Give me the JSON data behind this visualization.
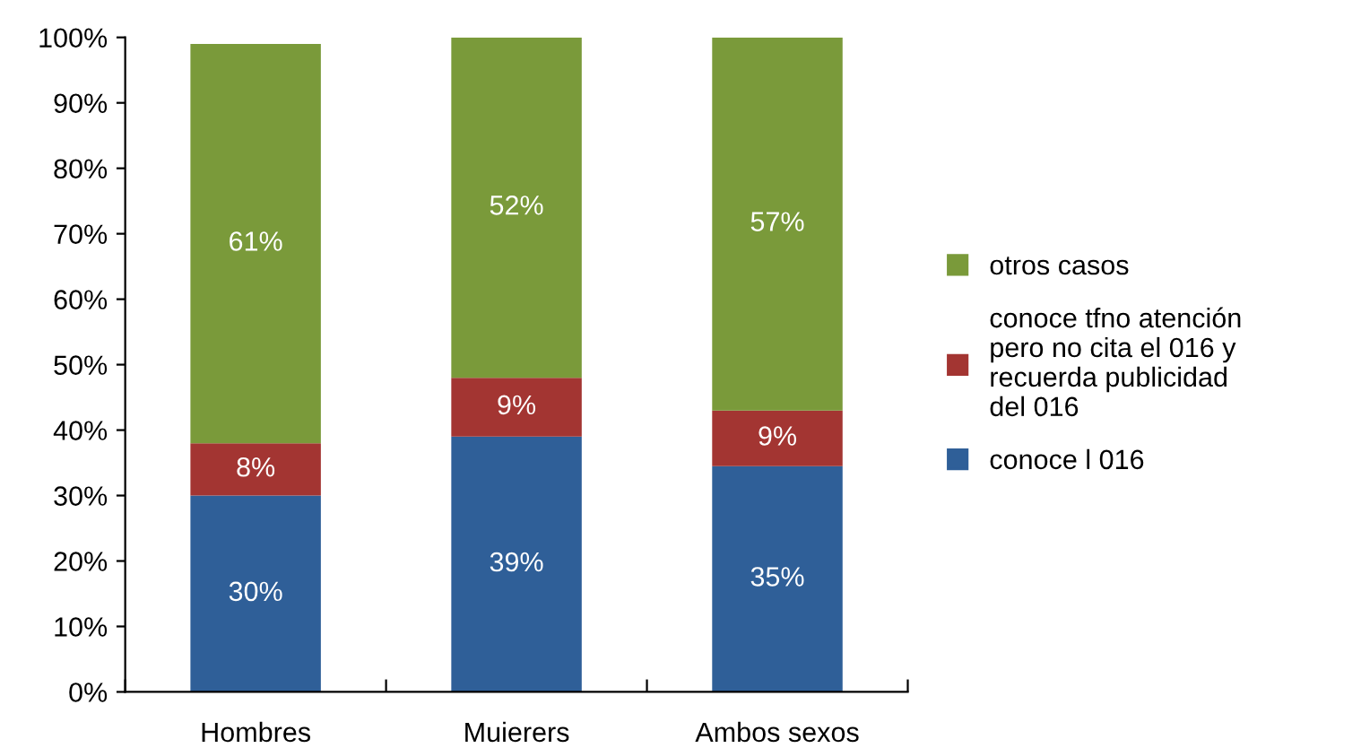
{
  "chart_data": {
    "type": "bar",
    "stacked": true,
    "categories": [
      "Hombres",
      "Muierers",
      "Ambos sexos"
    ],
    "series": [
      {
        "name": "conoce l 016",
        "color": "#2f5f98",
        "values": [
          30,
          39,
          34.5
        ],
        "value_labels": [
          "30%",
          "39%",
          "35%"
        ]
      },
      {
        "name": "conoce tfno atención\npero no cita el 016 y\nrecuerda publicidad\ndel 016",
        "color": "#a33532",
        "values": [
          8,
          9,
          8.5
        ],
        "value_labels": [
          "8%",
          "9%",
          "9%"
        ]
      },
      {
        "name": "otros casos",
        "color": "#7a9a3a",
        "values": [
          61,
          52,
          57
        ],
        "value_labels": [
          "61%",
          "52%",
          "57%"
        ]
      }
    ],
    "ylim": [
      0,
      100
    ],
    "yticks": [
      {
        "value": 0,
        "label": "0%"
      },
      {
        "value": 10,
        "label": "10%"
      },
      {
        "value": 20,
        "label": "20%"
      },
      {
        "value": 30,
        "label": "30%"
      },
      {
        "value": 40,
        "label": "40%"
      },
      {
        "value": 50,
        "label": "50%"
      },
      {
        "value": 60,
        "label": "60%"
      },
      {
        "value": 70,
        "label": "70%"
      },
      {
        "value": 80,
        "label": "80%"
      },
      {
        "value": 90,
        "label": "90%"
      },
      {
        "value": 100,
        "label": "100%"
      }
    ],
    "grid": false,
    "legend": "right"
  }
}
